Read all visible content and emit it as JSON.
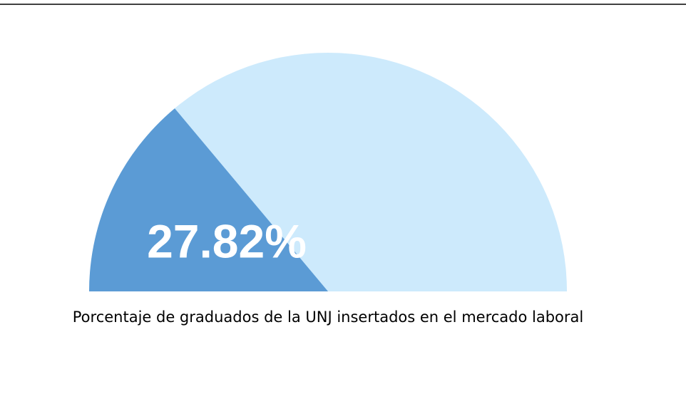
{
  "chart_data": {
    "type": "gauge",
    "value": 27.82,
    "value_label": "27.82%",
    "range": [
      0,
      100
    ],
    "color": "#5b9bd5",
    "track_color": "#cdeafc",
    "caption": "Porcentaje de graduados de la UNJ insertados en el mercado laboral"
  }
}
